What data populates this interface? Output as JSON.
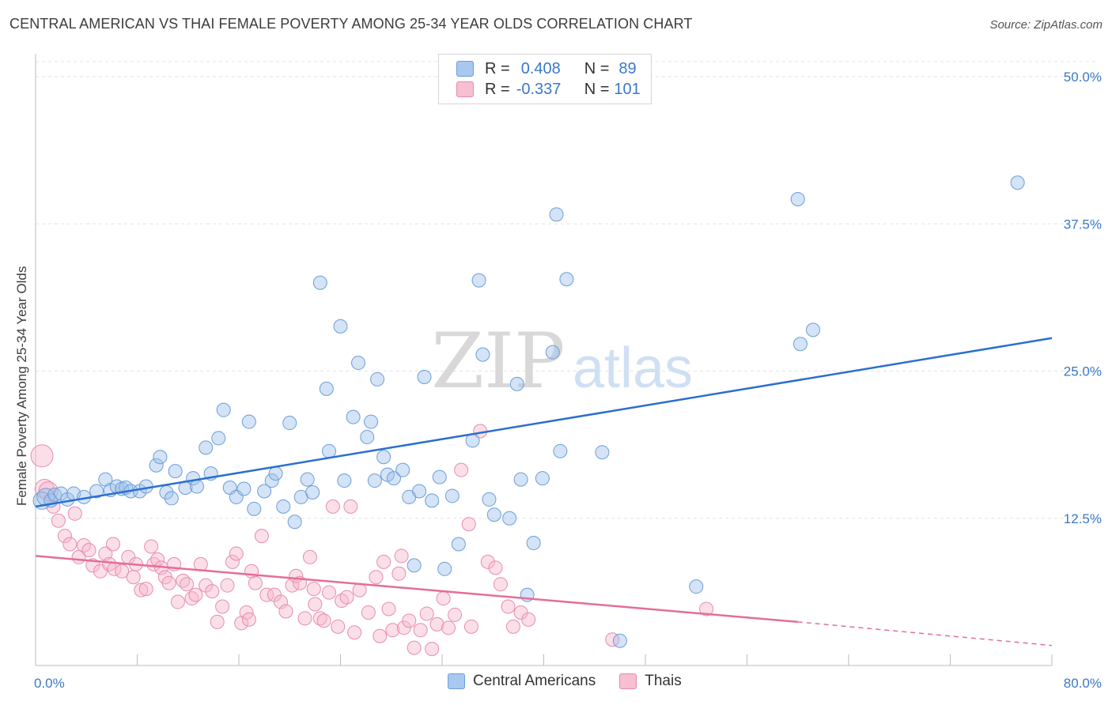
{
  "title": "CENTRAL AMERICAN VS THAI FEMALE POVERTY AMONG 25-34 YEAR OLDS CORRELATION CHART",
  "source": "Source: ZipAtlas.com",
  "watermark": {
    "zip": "ZIP",
    "atlas": "atlas"
  },
  "legend": {
    "rows": [
      {
        "r_key": "R =",
        "r_val": "0.408",
        "n_key": "N =",
        "n_val": "89",
        "color": "#a9c8ef",
        "border": "#6b9ed9"
      },
      {
        "r_key": "R =",
        "r_val": "-0.337",
        "n_key": "N =",
        "n_val": "101",
        "color": "#f6bfd2",
        "border": "#e889ab"
      }
    ]
  },
  "bottom_legend": [
    {
      "label": "Central Americans",
      "color": "#a9c8ef",
      "border": "#6b9ed9"
    },
    {
      "label": "Thais",
      "color": "#f6bfd2",
      "border": "#e889ab"
    }
  ],
  "colors": {
    "blue_fill": "rgba(160,193,236,0.45)",
    "blue_stroke": "#6b9ed9",
    "blue_line": "#2a6fcf",
    "pink_fill": "rgba(246,183,205,0.45)",
    "pink_stroke": "#e78cae",
    "pink_line": "#e46d9a",
    "tick_label": "#3a78c9",
    "grid": "#e3e3e3"
  },
  "chart_data": {
    "type": "scatter",
    "title": "CENTRAL AMERICAN VS THAI FEMALE POVERTY AMONG 25-34 YEAR OLDS CORRELATION CHART",
    "xlabel": "",
    "ylabel": "Female Poverty Among 25-34 Year Olds",
    "xlim": [
      0,
      80
    ],
    "ylim": [
      0,
      50
    ],
    "x_tick_labels": [
      "0.0%",
      "80.0%"
    ],
    "y_ticks": [
      12.5,
      25.0,
      37.5,
      50.0
    ],
    "y_tick_labels": [
      "12.5%",
      "25.0%",
      "37.5%",
      "50.0%"
    ],
    "grid": "horizontal dashed",
    "legend_placement": "top-center",
    "series": [
      {
        "name": "Central Americans",
        "r": 0.408,
        "n": 89,
        "trend": {
          "x": [
            0,
            80
          ],
          "y": [
            13.5,
            27.8
          ]
        },
        "points": [
          [
            0.5,
            14.0
          ],
          [
            0.8,
            14.3
          ],
          [
            1.2,
            14.0
          ],
          [
            1.5,
            14.5
          ],
          [
            2.0,
            14.6
          ],
          [
            2.5,
            14.1
          ],
          [
            3.0,
            14.6
          ],
          [
            3.8,
            14.3
          ],
          [
            4.8,
            14.8
          ],
          [
            5.5,
            15.8
          ],
          [
            5.9,
            14.9
          ],
          [
            6.4,
            15.2
          ],
          [
            6.8,
            15.0
          ],
          [
            7.1,
            15.1
          ],
          [
            7.5,
            14.8
          ],
          [
            8.2,
            14.8
          ],
          [
            8.7,
            15.2
          ],
          [
            9.5,
            17.0
          ],
          [
            9.8,
            17.7
          ],
          [
            10.3,
            14.7
          ],
          [
            10.7,
            14.2
          ],
          [
            11.0,
            16.5
          ],
          [
            11.8,
            15.1
          ],
          [
            12.4,
            15.9
          ],
          [
            12.7,
            15.2
          ],
          [
            13.4,
            18.5
          ],
          [
            13.8,
            16.3
          ],
          [
            14.4,
            19.3
          ],
          [
            14.8,
            21.7
          ],
          [
            15.3,
            15.1
          ],
          [
            15.8,
            14.3
          ],
          [
            16.4,
            15.0
          ],
          [
            16.8,
            20.7
          ],
          [
            17.2,
            13.3
          ],
          [
            18.0,
            14.8
          ],
          [
            18.6,
            15.7
          ],
          [
            18.9,
            16.3
          ],
          [
            19.5,
            13.5
          ],
          [
            20.0,
            20.6
          ],
          [
            20.4,
            12.2
          ],
          [
            20.9,
            14.3
          ],
          [
            21.4,
            15.8
          ],
          [
            21.8,
            14.7
          ],
          [
            22.4,
            32.5
          ],
          [
            22.9,
            23.5
          ],
          [
            23.1,
            18.2
          ],
          [
            24.0,
            28.8
          ],
          [
            24.3,
            15.7
          ],
          [
            25.0,
            21.1
          ],
          [
            25.4,
            25.7
          ],
          [
            26.1,
            19.4
          ],
          [
            26.4,
            20.7
          ],
          [
            26.7,
            15.7
          ],
          [
            26.9,
            24.3
          ],
          [
            27.4,
            17.7
          ],
          [
            27.7,
            16.2
          ],
          [
            28.2,
            15.9
          ],
          [
            28.9,
            16.6
          ],
          [
            29.4,
            14.3
          ],
          [
            29.8,
            8.5
          ],
          [
            30.2,
            14.8
          ],
          [
            30.6,
            24.5
          ],
          [
            31.2,
            14.0
          ],
          [
            31.8,
            16.0
          ],
          [
            32.2,
            8.2
          ],
          [
            32.8,
            14.4
          ],
          [
            33.3,
            10.3
          ],
          [
            34.4,
            19.1
          ],
          [
            34.9,
            32.7
          ],
          [
            35.2,
            26.4
          ],
          [
            35.7,
            14.1
          ],
          [
            36.1,
            12.8
          ],
          [
            37.3,
            12.5
          ],
          [
            37.9,
            23.9
          ],
          [
            38.2,
            15.8
          ],
          [
            38.7,
            6.0
          ],
          [
            39.2,
            10.4
          ],
          [
            39.9,
            15.9
          ],
          [
            40.7,
            26.6
          ],
          [
            41.0,
            38.3
          ],
          [
            41.3,
            18.2
          ],
          [
            41.8,
            32.8
          ],
          [
            44.6,
            18.1
          ],
          [
            46.0,
            2.1
          ],
          [
            52.0,
            6.7
          ],
          [
            60.0,
            39.6
          ],
          [
            60.2,
            27.3
          ],
          [
            61.2,
            28.5
          ],
          [
            77.3,
            41.0
          ]
        ]
      },
      {
        "name": "Thais",
        "r": -0.337,
        "n": 101,
        "trend": {
          "x": [
            0,
            60
          ],
          "y": [
            9.3,
            3.7
          ]
        },
        "trend_dashed": {
          "x": [
            60,
            80
          ],
          "y": [
            3.7,
            1.7
          ]
        },
        "points": [
          [
            0.5,
            17.8
          ],
          [
            0.7,
            15.0
          ],
          [
            1.0,
            14.8
          ],
          [
            1.4,
            13.5
          ],
          [
            1.8,
            12.3
          ],
          [
            2.3,
            11.0
          ],
          [
            2.7,
            10.3
          ],
          [
            3.1,
            12.9
          ],
          [
            3.4,
            9.2
          ],
          [
            3.8,
            10.2
          ],
          [
            4.2,
            9.8
          ],
          [
            4.5,
            8.5
          ],
          [
            5.1,
            8.0
          ],
          [
            5.5,
            9.5
          ],
          [
            5.8,
            8.6
          ],
          [
            6.2,
            8.2
          ],
          [
            6.8,
            8.0
          ],
          [
            7.3,
            9.2
          ],
          [
            7.7,
            7.5
          ],
          [
            7.9,
            8.6
          ],
          [
            8.3,
            6.4
          ],
          [
            8.7,
            6.5
          ],
          [
            9.3,
            8.6
          ],
          [
            9.6,
            9.0
          ],
          [
            9.9,
            8.3
          ],
          [
            10.2,
            7.5
          ],
          [
            10.5,
            7.0
          ],
          [
            10.9,
            8.6
          ],
          [
            11.2,
            5.4
          ],
          [
            11.6,
            7.2
          ],
          [
            11.9,
            6.9
          ],
          [
            12.3,
            5.7
          ],
          [
            12.6,
            6.0
          ],
          [
            13.0,
            8.6
          ],
          [
            13.4,
            6.8
          ],
          [
            13.9,
            6.3
          ],
          [
            14.3,
            3.7
          ],
          [
            14.7,
            5.0
          ],
          [
            15.1,
            6.8
          ],
          [
            15.5,
            8.8
          ],
          [
            15.8,
            9.5
          ],
          [
            16.2,
            3.6
          ],
          [
            16.6,
            4.5
          ],
          [
            17.0,
            8.0
          ],
          [
            17.3,
            7.0
          ],
          [
            17.8,
            11.0
          ],
          [
            18.2,
            6.0
          ],
          [
            18.8,
            6.0
          ],
          [
            19.3,
            5.4
          ],
          [
            19.7,
            4.6
          ],
          [
            20.2,
            6.8
          ],
          [
            20.5,
            7.6
          ],
          [
            20.8,
            7.0
          ],
          [
            21.2,
            4.0
          ],
          [
            21.6,
            9.2
          ],
          [
            22.0,
            5.2
          ],
          [
            22.4,
            4.0
          ],
          [
            22.7,
            3.8
          ],
          [
            23.1,
            6.2
          ],
          [
            23.4,
            13.5
          ],
          [
            23.8,
            3.3
          ],
          [
            24.1,
            5.5
          ],
          [
            24.5,
            5.8
          ],
          [
            24.8,
            13.5
          ],
          [
            25.1,
            2.8
          ],
          [
            25.5,
            6.4
          ],
          [
            26.2,
            4.5
          ],
          [
            26.8,
            7.5
          ],
          [
            27.1,
            2.5
          ],
          [
            27.4,
            8.8
          ],
          [
            27.8,
            4.8
          ],
          [
            28.1,
            3.0
          ],
          [
            28.6,
            7.8
          ],
          [
            29.0,
            3.2
          ],
          [
            29.4,
            3.8
          ],
          [
            29.8,
            1.5
          ],
          [
            30.3,
            3.0
          ],
          [
            30.8,
            4.4
          ],
          [
            31.2,
            1.4
          ],
          [
            31.6,
            3.5
          ],
          [
            32.1,
            5.7
          ],
          [
            32.5,
            3.2
          ],
          [
            33.0,
            4.3
          ],
          [
            33.5,
            16.6
          ],
          [
            34.1,
            12.0
          ],
          [
            35.0,
            19.9
          ],
          [
            34.3,
            3.3
          ],
          [
            35.6,
            8.8
          ],
          [
            36.2,
            8.3
          ],
          [
            36.6,
            6.9
          ],
          [
            37.2,
            5.0
          ],
          [
            37.6,
            3.3
          ],
          [
            38.2,
            4.5
          ],
          [
            38.8,
            3.9
          ],
          [
            45.4,
            2.2
          ],
          [
            52.8,
            4.8
          ],
          [
            6.1,
            10.3
          ],
          [
            9.1,
            10.1
          ],
          [
            28.8,
            9.3
          ],
          [
            21.9,
            6.5
          ],
          [
            16.8,
            3.9
          ]
        ]
      }
    ]
  }
}
